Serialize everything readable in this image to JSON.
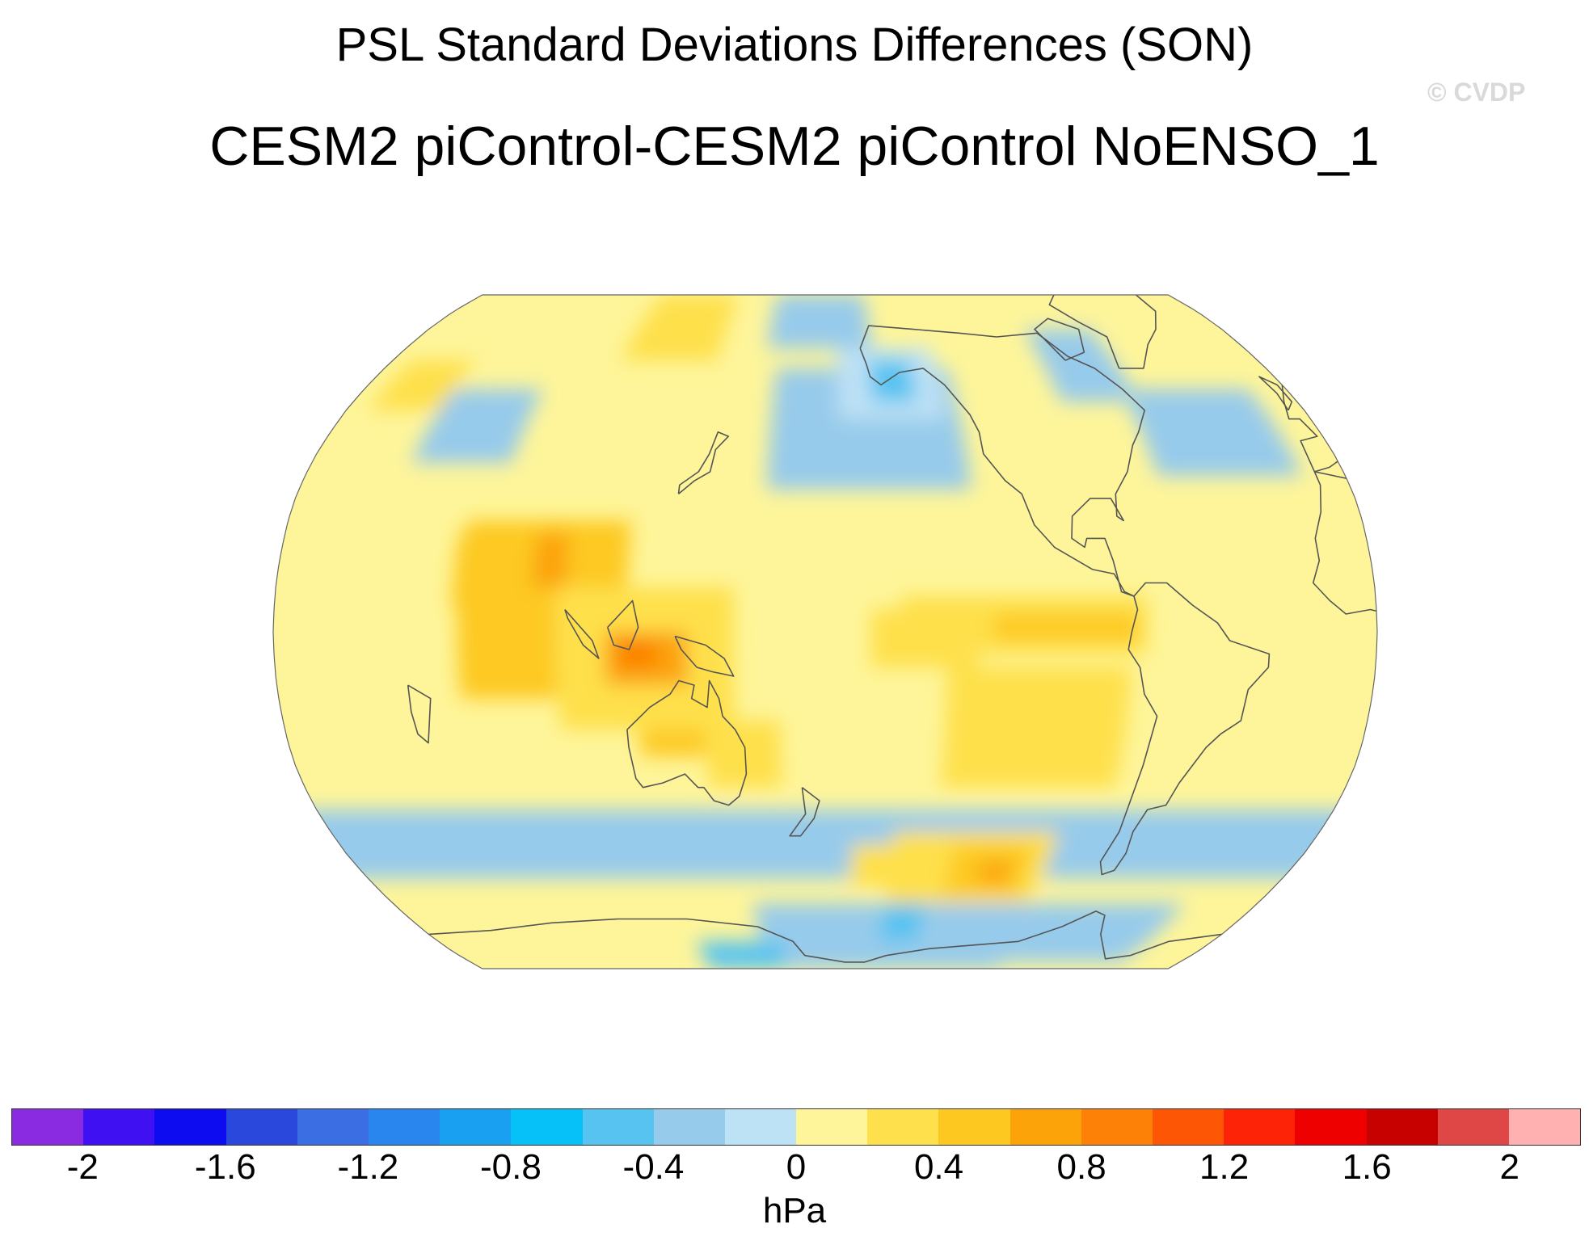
{
  "title": "PSL Standard Deviations Differences (SON)",
  "subtitle": "CESM2 piControl-CESM2 piControl NoENSO_1",
  "watermark": "© CVDP",
  "units": "hPa",
  "colors": {
    "level_colors": [
      "#8a2be2",
      "#3f10f2",
      "#0d0bef",
      "#2a48db",
      "#3a6ee2",
      "#2a86ef",
      "#1aa0f0",
      "#05c1f7",
      "#56c3f1",
      "#97cbeb",
      "#bde1f5",
      "#fef59a",
      "#fee04c",
      "#fdc921",
      "#fca30a",
      "#fc8106",
      "#fd5604",
      "#fc2306",
      "#ee0000",
      "#c70000",
      "#df4747",
      "#ffb1b1"
    ],
    "land_outline": "#555555",
    "map_border": "#666666"
  },
  "colorbar": {
    "tick_labels": [
      "-2",
      "-1.6",
      "-1.2",
      "-0.8",
      "-0.4",
      "0",
      "0.4",
      "0.8",
      "1.2",
      "1.6",
      "2"
    ]
  },
  "chart_data": {
    "type": "heatmap",
    "projection": "Robinson",
    "central_longitude": 180,
    "variable": "PSL standard deviation difference",
    "season": "SON",
    "units": "hPa",
    "contour_levels": [
      -2,
      -1.8,
      -1.6,
      -1.4,
      -1.2,
      -1,
      -0.8,
      -0.6,
      -0.4,
      -0.2,
      0,
      0.2,
      0.4,
      0.6,
      0.8,
      1,
      1.2,
      1.4,
      1.6,
      1.8,
      2
    ],
    "value_range": [
      -2,
      2
    ],
    "background_value": 0.1,
    "features": [
      {
        "name": "maritime-continent-max",
        "lon": 128,
        "lat": -5,
        "value": 0.85
      },
      {
        "name": "indian-ocean-high",
        "lon": 95,
        "lat": 5,
        "value": 0.5
      },
      {
        "name": "bay-of-bengal-high",
        "lon": 88,
        "lat": 15,
        "value": 0.65
      },
      {
        "name": "arabian-sea-high",
        "lon": 70,
        "lat": 15,
        "value": 0.45
      },
      {
        "name": "north-australia-high",
        "lon": 135,
        "lat": -20,
        "value": 0.45
      },
      {
        "name": "east-australia-high",
        "lon": 150,
        "lat": -25,
        "value": 0.3
      },
      {
        "name": "east-pacific-max",
        "lon": 255,
        "lat": -2,
        "value": 0.5
      },
      {
        "name": "southeast-pacific-high",
        "lon": 250,
        "lat": -22,
        "value": 0.3
      },
      {
        "name": "central-pacific-high",
        "lon": 210,
        "lat": 0,
        "value": 0.3
      },
      {
        "name": "south-pacific-max",
        "lon": 240,
        "lat": -55,
        "value": 0.65
      },
      {
        "name": "south-pacific-high-2",
        "lon": 215,
        "lat": -53,
        "value": 0.3
      },
      {
        "name": "siberia-high",
        "lon": 110,
        "lat": 72,
        "value": 0.3
      },
      {
        "name": "scandinavia-high",
        "lon": 20,
        "lat": 55,
        "value": 0.3
      },
      {
        "name": "gulf-of-alaska-min",
        "lon": 205,
        "lat": 55,
        "value": -0.45
      },
      {
        "name": "north-pacific-low",
        "lon": 190,
        "lat": 45,
        "value": -0.2
      },
      {
        "name": "alaska-low",
        "lon": 170,
        "lat": 70,
        "value": -0.2
      },
      {
        "name": "north-atlantic-low",
        "lon": 320,
        "lat": 45,
        "value": -0.2
      },
      {
        "name": "hudson-bay-low",
        "lon": 285,
        "lat": 60,
        "value": -0.2
      },
      {
        "name": "southern-ocean-band",
        "lon": 180,
        "lat": -48,
        "value": -0.2
      },
      {
        "name": "antarctic-low",
        "lon": 200,
        "lat": -72,
        "value": -0.35
      },
      {
        "name": "amundsen-low",
        "lon": 215,
        "lat": -68,
        "value": -0.45
      },
      {
        "name": "indian-antarctic-min",
        "lon": 140,
        "lat": -80,
        "value": -0.45
      },
      {
        "name": "south-atlantic-low",
        "lon": 330,
        "lat": -48,
        "value": -0.3
      },
      {
        "name": "bellingshausen-low",
        "lon": 300,
        "lat": -70,
        "value": -0.3
      },
      {
        "name": "central-asia-low",
        "lon": 50,
        "lat": 45,
        "value": -0.2
      }
    ]
  }
}
